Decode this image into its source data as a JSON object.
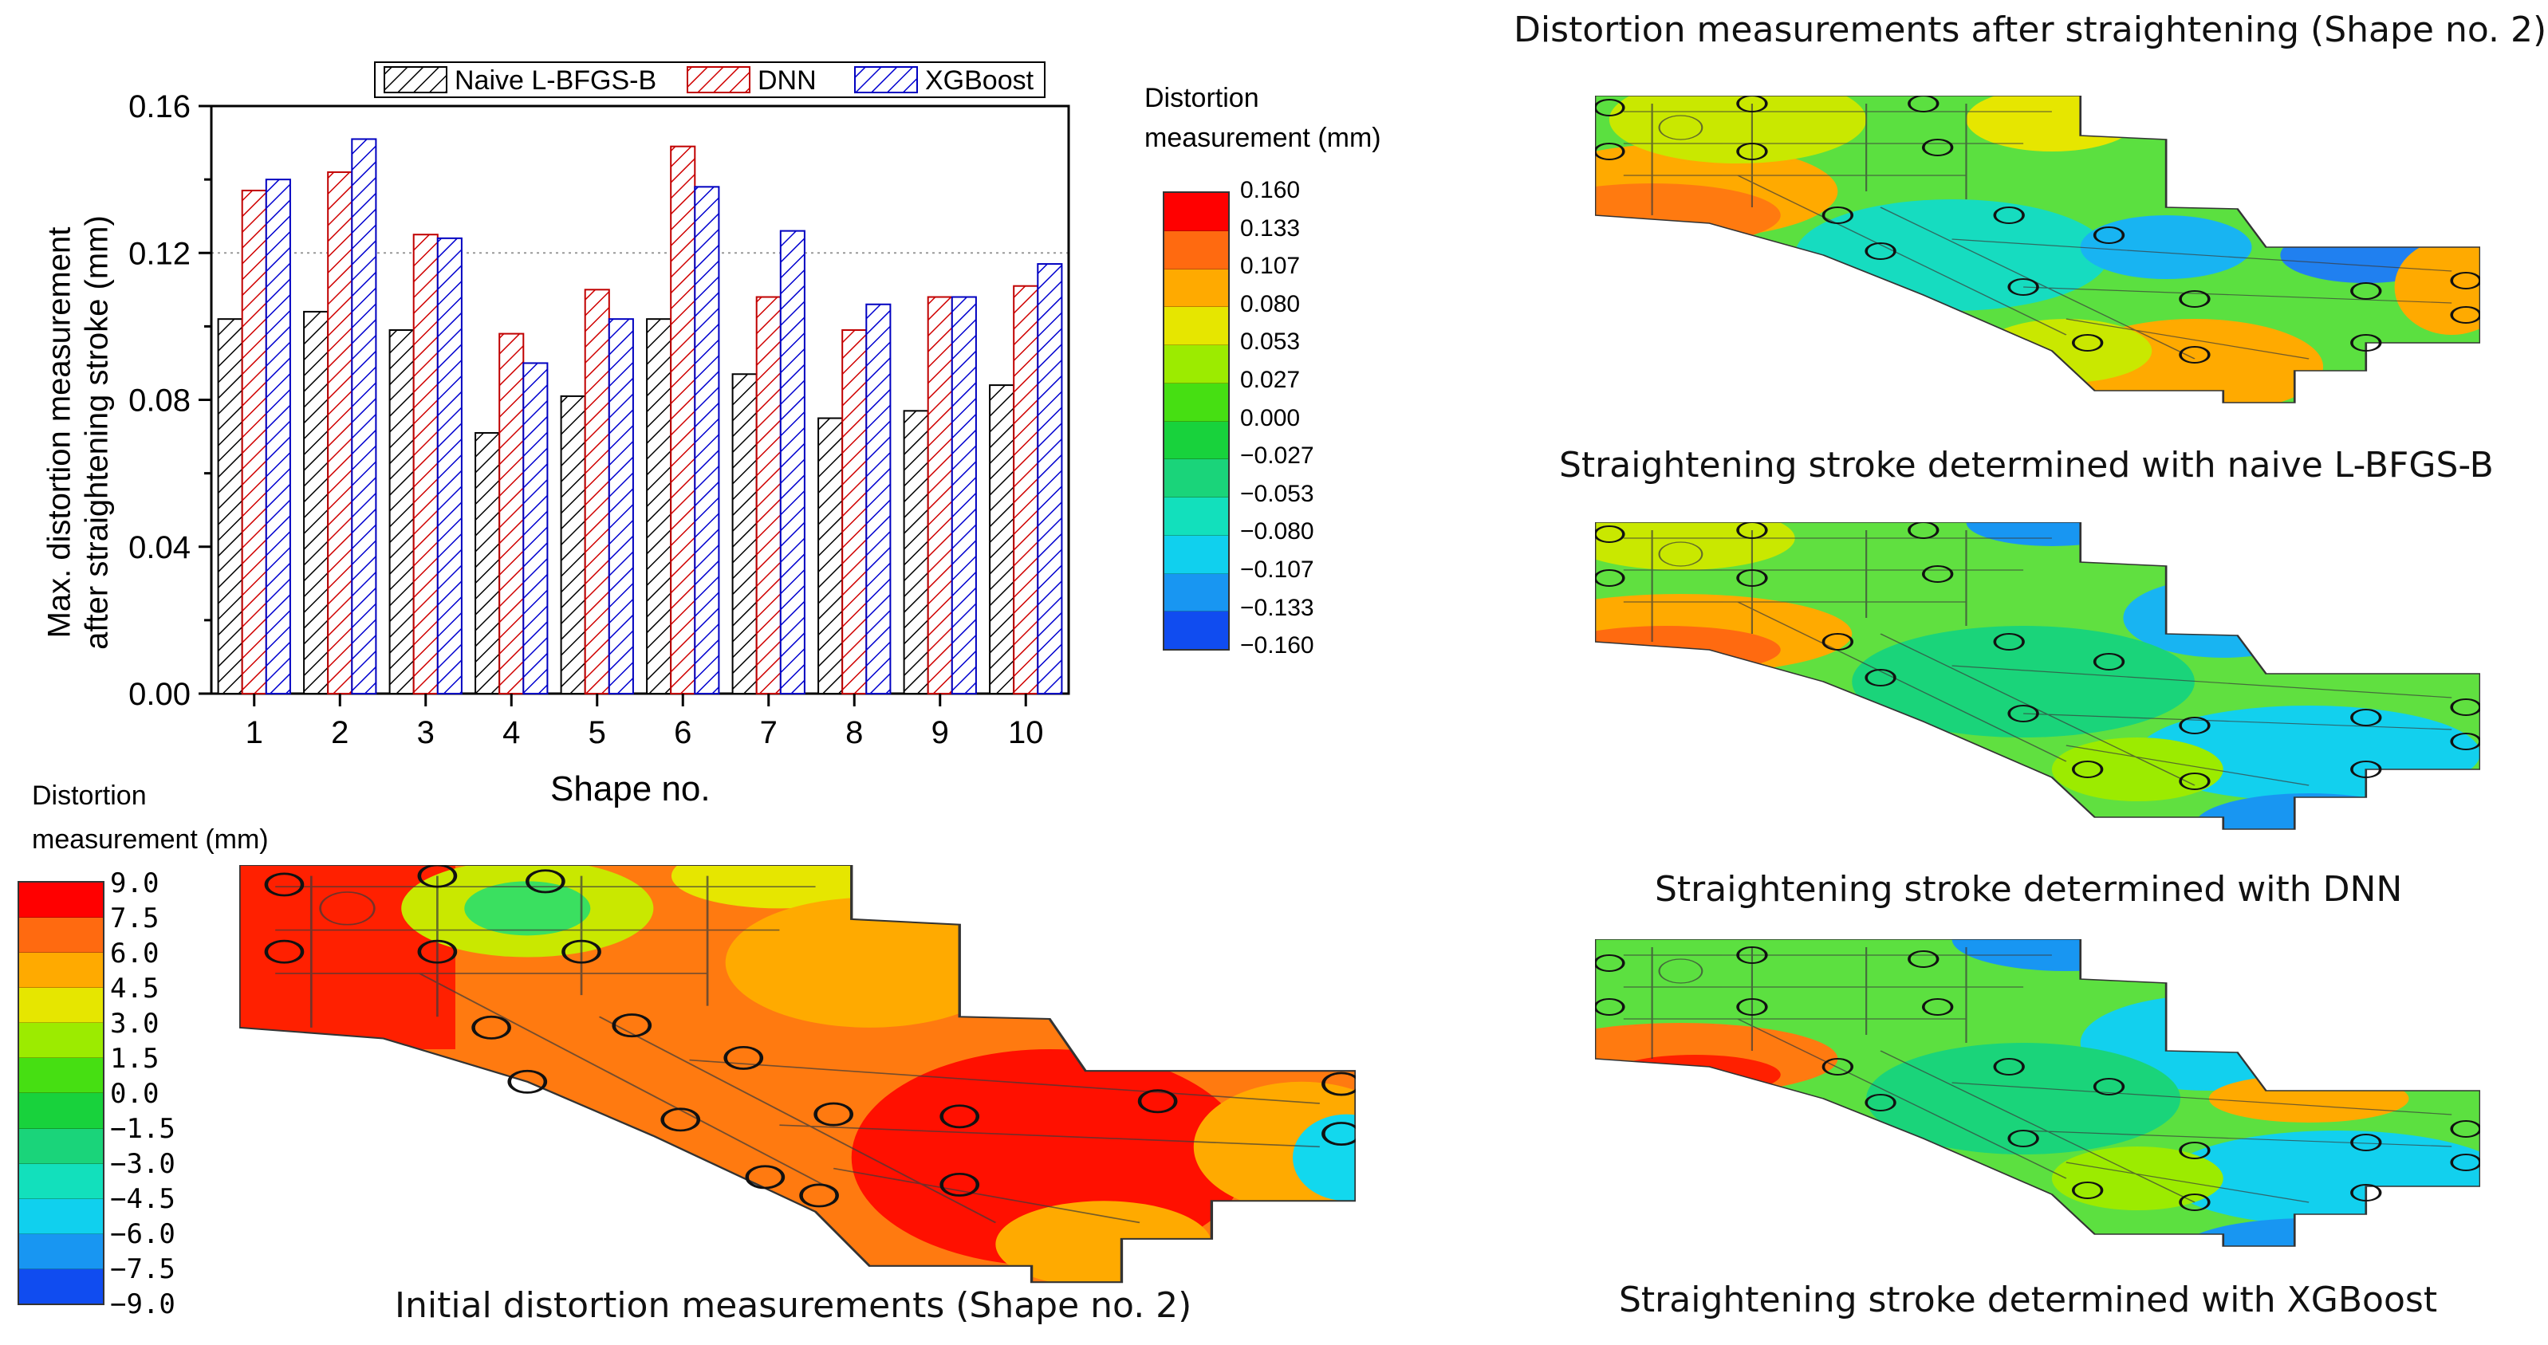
{
  "chart_data": {
    "type": "bar",
    "categories": [
      "1",
      "2",
      "3",
      "4",
      "5",
      "6",
      "7",
      "8",
      "9",
      "10"
    ],
    "series": [
      {
        "name": "Naive L-BFGS-B",
        "values": [
          0.102,
          0.104,
          0.099,
          0.071,
          0.081,
          0.102,
          0.087,
          0.075,
          0.077,
          0.084
        ],
        "color": "#cfcfcf",
        "stroke": "#000000"
      },
      {
        "name": "DNN",
        "values": [
          0.137,
          0.142,
          0.125,
          0.098,
          0.11,
          0.149,
          0.108,
          0.099,
          0.108,
          0.111
        ],
        "color": "#f6c9c9",
        "stroke": "#c00000"
      },
      {
        "name": "XGBoost",
        "values": [
          0.14,
          0.151,
          0.124,
          0.09,
          0.102,
          0.138,
          0.126,
          0.106,
          0.108,
          0.117
        ],
        "color": "#c9cdf4",
        "stroke": "#0000c0"
      }
    ],
    "xlabel": "Shape no.",
    "ylabel_line1": "Max. distortion measurement",
    "ylabel_line2": "after straightening stroke (mm)",
    "ylim": [
      0,
      0.16
    ],
    "yticks": [
      "0.00",
      "0.04",
      "0.08",
      "0.12",
      "0.16"
    ],
    "reference_line": 0.12,
    "legend_position": "top"
  },
  "colorbar_top": {
    "title_line1": "Distortion",
    "title_line2": "measurement (mm)",
    "labels": [
      "0.160",
      "0.133",
      "0.107",
      "0.080",
      "0.053",
      "0.027",
      "0.000",
      "−0.027",
      "−0.053",
      "−0.080",
      "−0.107",
      "−0.133",
      "−0.160"
    ],
    "colors": [
      "#ff0000",
      "#ff6a10",
      "#ffaa00",
      "#e6e600",
      "#9ceb00",
      "#46df12",
      "#18d23c",
      "#1ad47a",
      "#12e0bc",
      "#10d0ee",
      "#1896f2",
      "#104cf0",
      "#0000ff"
    ]
  },
  "colorbar_bottom": {
    "title_line1": "Distortion",
    "title_line2": "measurement (mm)",
    "labels": [
      "9.0",
      "7.5",
      "6.0",
      "4.5",
      "3.0",
      "1.5",
      "0.0",
      "−1.5",
      "−3.0",
      "−4.5",
      "−6.0",
      "−7.5",
      "−9.0"
    ]
  },
  "panels": {
    "right_title": "Distortion measurements after straightening (Shape no. 2)",
    "caption_lbfgs": "Straightening stroke determined with naive L-BFGS-B",
    "caption_dnn": "Straightening stroke determined with DNN",
    "caption_xgb": "Straightening stroke determined with XGBoost",
    "caption_initial": "Initial distortion measurements (Shape no. 2)"
  }
}
